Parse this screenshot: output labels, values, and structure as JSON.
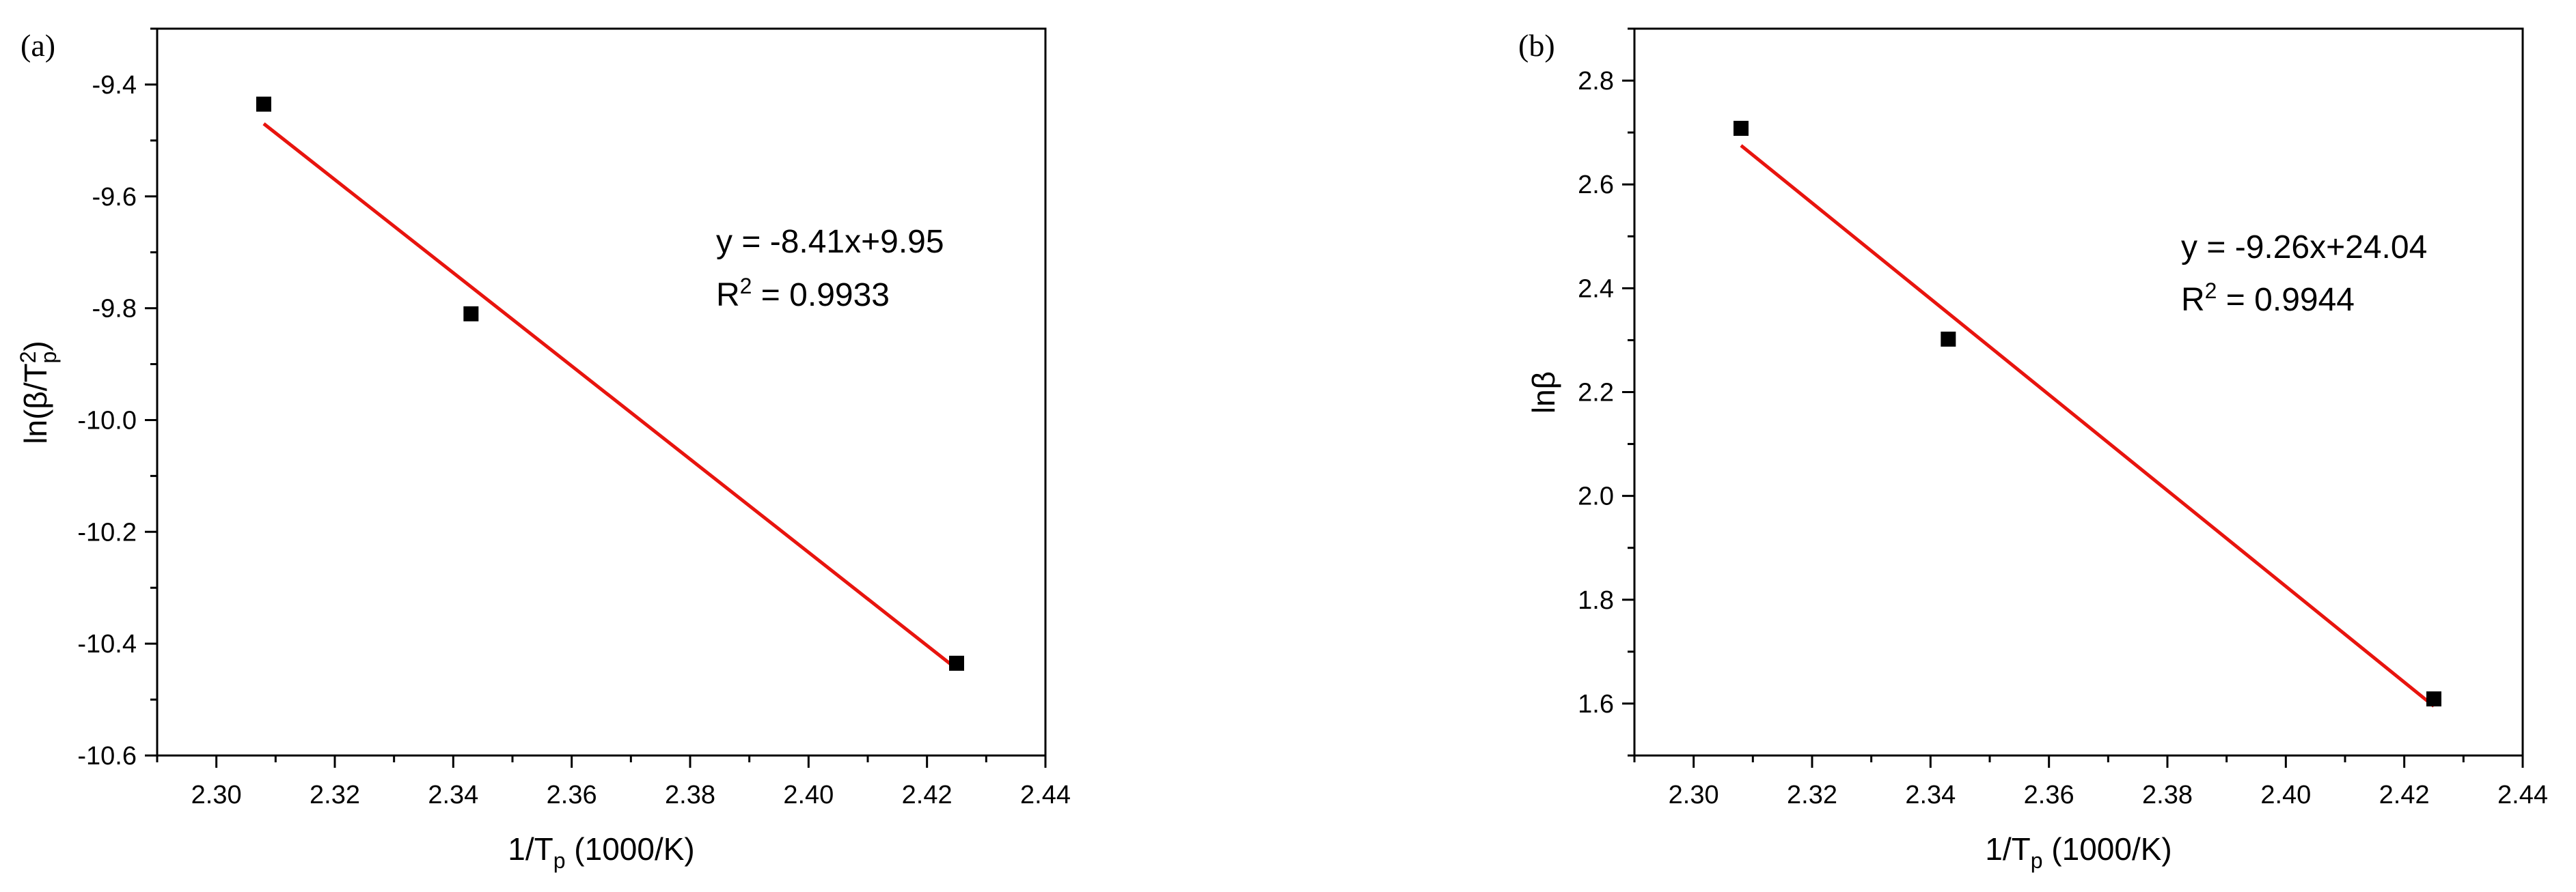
{
  "chart_data": [
    {
      "type": "scatter",
      "panel_label": "(a)",
      "xlabel": "1/T",
      "xlabel_sub": "p",
      "xlabel_units": " (1000/K)",
      "ylabel_prefix": "ln(β/T",
      "ylabel_sup": "2",
      "ylabel_sub": "p",
      "ylabel_suffix": ")",
      "xlim": [
        2.29,
        2.44
      ],
      "ylim": [
        -10.6,
        -9.3
      ],
      "xticks": [
        "2.30",
        "2.32",
        "2.34",
        "2.36",
        "2.38",
        "2.40",
        "2.42",
        "2.44"
      ],
      "yticks": [
        "-9.4",
        "-9.6",
        "-9.8",
        "-10.0",
        "-10.2",
        "-10.4",
        "-10.6"
      ],
      "points": [
        {
          "x": 2.308,
          "y": -9.435
        },
        {
          "x": 2.343,
          "y": -9.81
        },
        {
          "x": 2.425,
          "y": -10.435
        }
      ],
      "fit": {
        "x": [
          2.308,
          2.425
        ],
        "y": [
          -9.47,
          -10.445
        ]
      },
      "equation": "y = -8.41x+9.95",
      "r2_prefix": "R",
      "r2_sup": "2",
      "r2_value": " = 0.9933",
      "marker_color": "#000000",
      "fit_color": "#e8140e"
    },
    {
      "type": "scatter",
      "panel_label": "(b)",
      "xlabel": "1/T",
      "xlabel_sub": "p",
      "xlabel_units": " (1000/K)",
      "ylabel": "lnβ",
      "xlim": [
        2.29,
        2.44
      ],
      "ylim": [
        1.5,
        2.9
      ],
      "xticks": [
        "2.30",
        "2.32",
        "2.34",
        "2.36",
        "2.38",
        "2.40",
        "2.42",
        "2.44"
      ],
      "yticks": [
        "2.8",
        "2.6",
        "2.4",
        "2.2",
        "2.0",
        "1.8",
        "1.6"
      ],
      "points": [
        {
          "x": 2.308,
          "y": 2.708
        },
        {
          "x": 2.343,
          "y": 2.302
        },
        {
          "x": 2.425,
          "y": 1.609
        }
      ],
      "fit": {
        "x": [
          2.308,
          2.425
        ],
        "y": [
          2.675,
          1.595
        ]
      },
      "equation": "y = -9.26x+24.04",
      "r2_prefix": "R",
      "r2_sup": "2",
      "r2_value": " = 0.9944",
      "marker_color": "#000000",
      "fit_color": "#e8140e"
    }
  ]
}
